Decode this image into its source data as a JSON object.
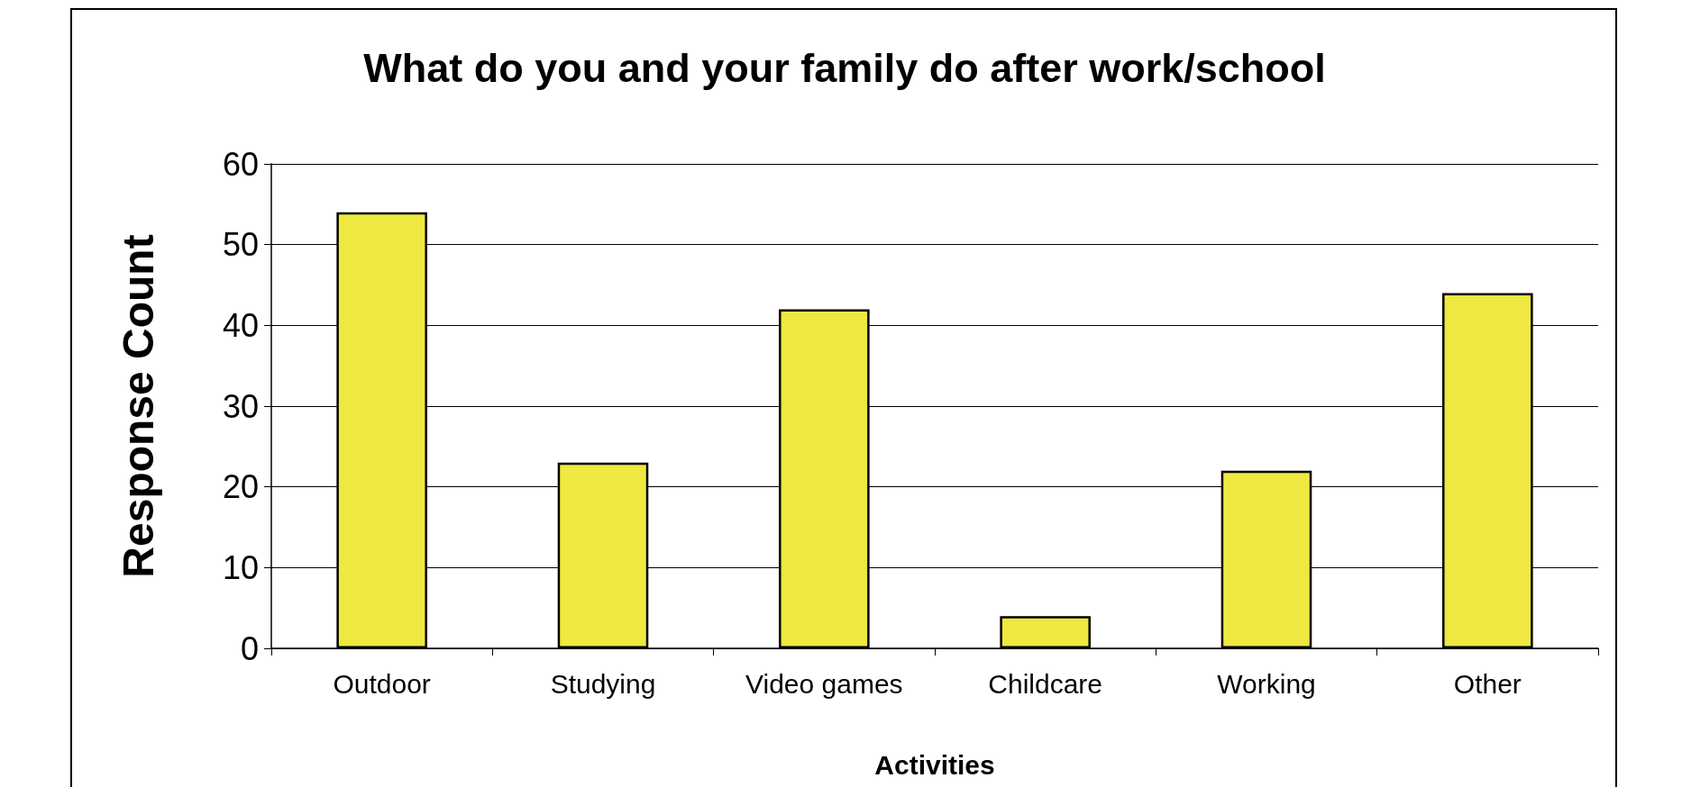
{
  "chart_data": {
    "type": "bar",
    "title": "What do you and your family do after work/school",
    "xlabel": "Activities",
    "ylabel": "Response Count",
    "categories": [
      "Outdoor",
      "Studying",
      "Video games",
      "Childcare",
      "Working",
      "Other"
    ],
    "values": [
      54,
      23,
      42,
      4,
      22,
      44
    ],
    "color": "#eee840",
    "ylim": [
      0,
      60
    ],
    "yticks": [
      0,
      10,
      20,
      30,
      40,
      50,
      60
    ],
    "grid": "y"
  }
}
